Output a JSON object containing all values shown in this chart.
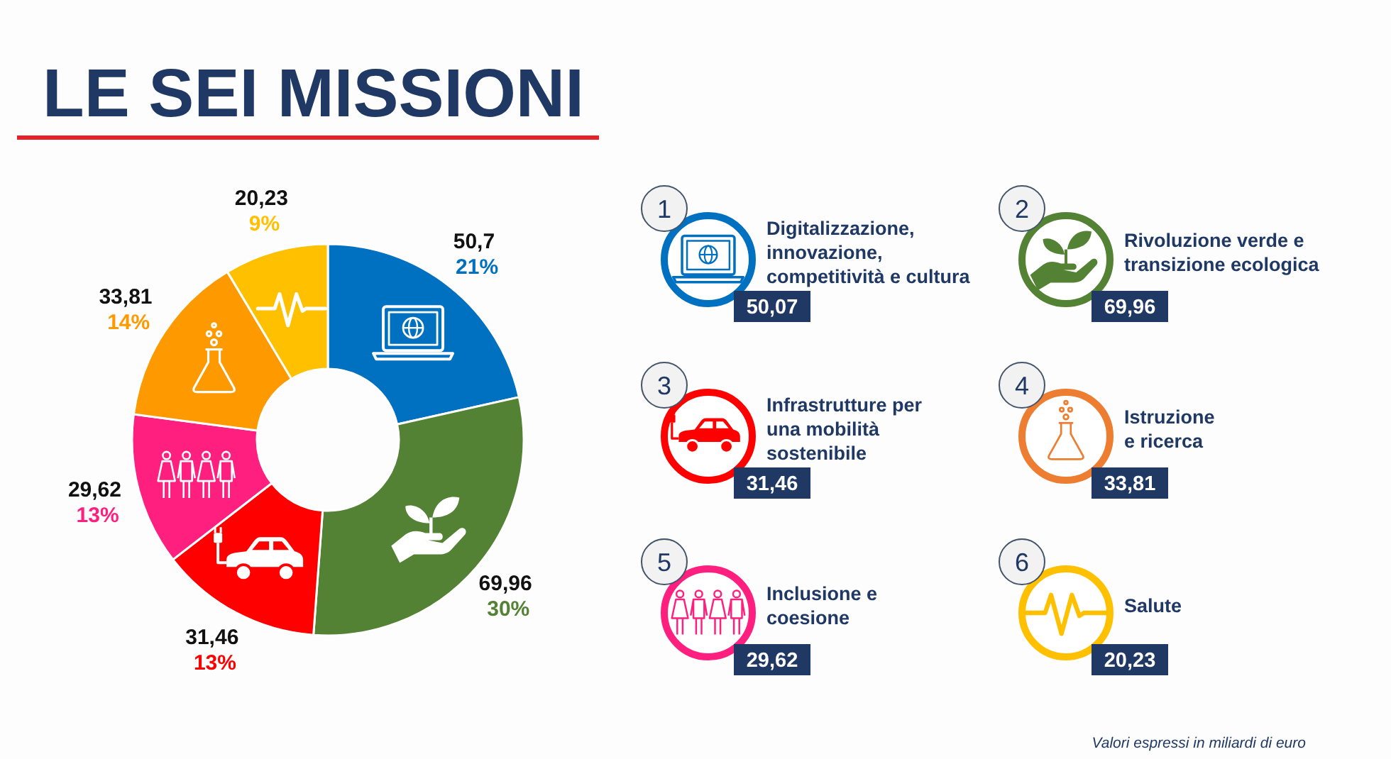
{
  "chart_data": [
    {
      "type": "donut",
      "title": "LE SEI MISSIONI",
      "categories": [
        null,
        null,
        null,
        null,
        null,
        null
      ],
      "values": [
        50.7,
        69.96,
        31.46,
        29.62,
        33.81,
        20.23
      ],
      "colors": [
        "#0070c0",
        "#548235",
        "#ff0000",
        "#ff1f7e",
        "#ff9900",
        "#ffc000"
      ],
      "value_labels": [
        "50,7\n21%",
        "69,96\n30%",
        "31,46\n13%",
        "29,62\n13%",
        "33,81\n14%",
        "20,23\n9%"
      ],
      "annotations": [
        "Valori espressi in miliardi di euro"
      ]
    },
    {
      "type": "other",
      "categories": [
        "Digitalizzazione,\ninnovazione,\ncompetitività e cultura",
        "Rivoluzione verde e\ntransizione ecologica",
        "Infrastrutture per\nuna mobilità\nsostenibile",
        "Istruzione\ne ricerca",
        "Inclusione e\ncoesione",
        "Salute"
      ],
      "values": [
        50.07,
        69.96,
        31.46,
        33.81,
        29.62,
        20.23
      ],
      "value_labels": [
        "50,07",
        "69,96",
        "31,46",
        "33,81",
        "29,62",
        "20,23"
      ],
      "colors": [
        "#1f3864",
        "#1f3864",
        "#1f3864",
        "#1f3864",
        "#1f3864",
        "#1f3864"
      ],
      "annotations": [
        "1",
        "2",
        "3",
        "4",
        "5",
        "6"
      ]
    }
  ]
}
